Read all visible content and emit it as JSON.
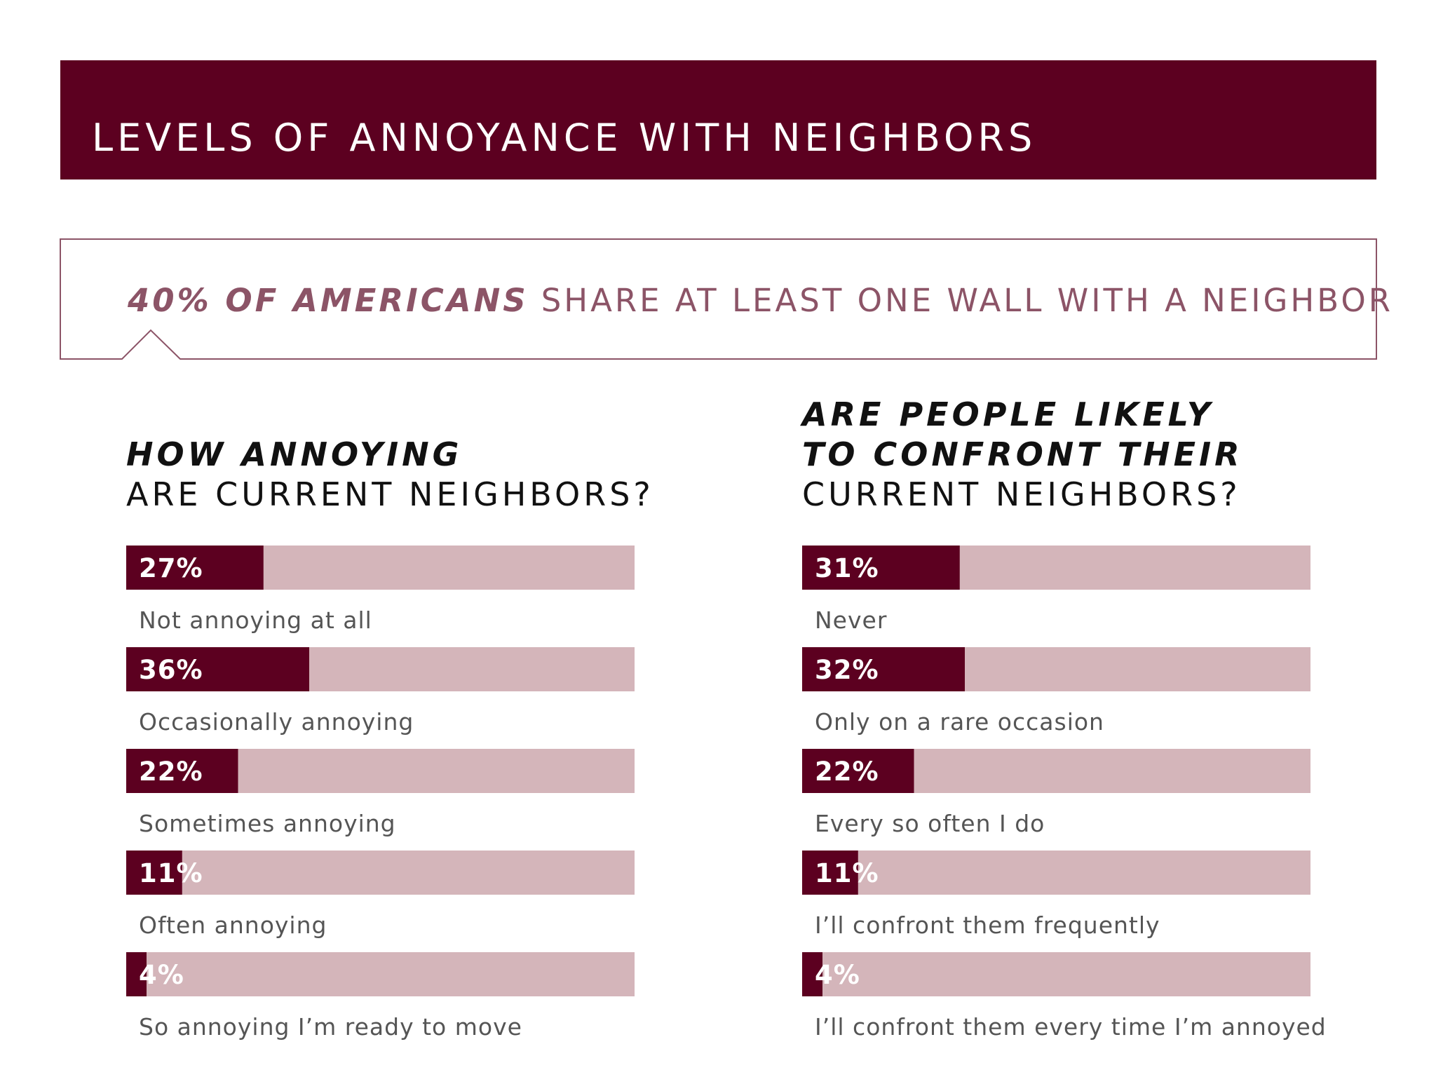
{
  "title": "LEVELS OF ANNOYANCE WITH NEIGHBORS",
  "banner": {
    "emphasis": "40% OF AMERICANS",
    "text": "SHARE AT LEAST ONE WALL WITH A NEIGHBOR"
  },
  "chart_data": [
    {
      "type": "bar",
      "orientation": "horizontal",
      "title_bold": [
        "HOW ANNOYING"
      ],
      "title_plain": [
        "ARE CURRENT NEIGHBORS?"
      ],
      "categories": [
        "Not annoying at all",
        "Occasionally annoying",
        "Sometimes annoying",
        "Often annoying",
        "So annoying I’m ready to move"
      ],
      "values": [
        27,
        36,
        22,
        11,
        4
      ],
      "value_labels": [
        "27%",
        "36%",
        "22%",
        "11%",
        "4%"
      ],
      "xlim": [
        0,
        100
      ],
      "color": "#5c0020",
      "track_color": "#d4b5ba"
    },
    {
      "type": "bar",
      "orientation": "horizontal",
      "title_bold": [
        "ARE PEOPLE LIKELY",
        "TO CONFRONT THEIR"
      ],
      "title_plain": [
        "CURRENT NEIGHBORS?"
      ],
      "categories": [
        "Never",
        "Only on a rare occasion",
        "Every so often I do",
        "I’ll confront them frequently",
        "I’ll confront them every time I’m annoyed"
      ],
      "values": [
        31,
        32,
        22,
        11,
        4
      ],
      "value_labels": [
        "31%",
        "32%",
        "22%",
        "11%",
        "4%"
      ],
      "xlim": [
        0,
        100
      ],
      "color": "#5c0020",
      "track_color": "#d4b5ba"
    }
  ]
}
